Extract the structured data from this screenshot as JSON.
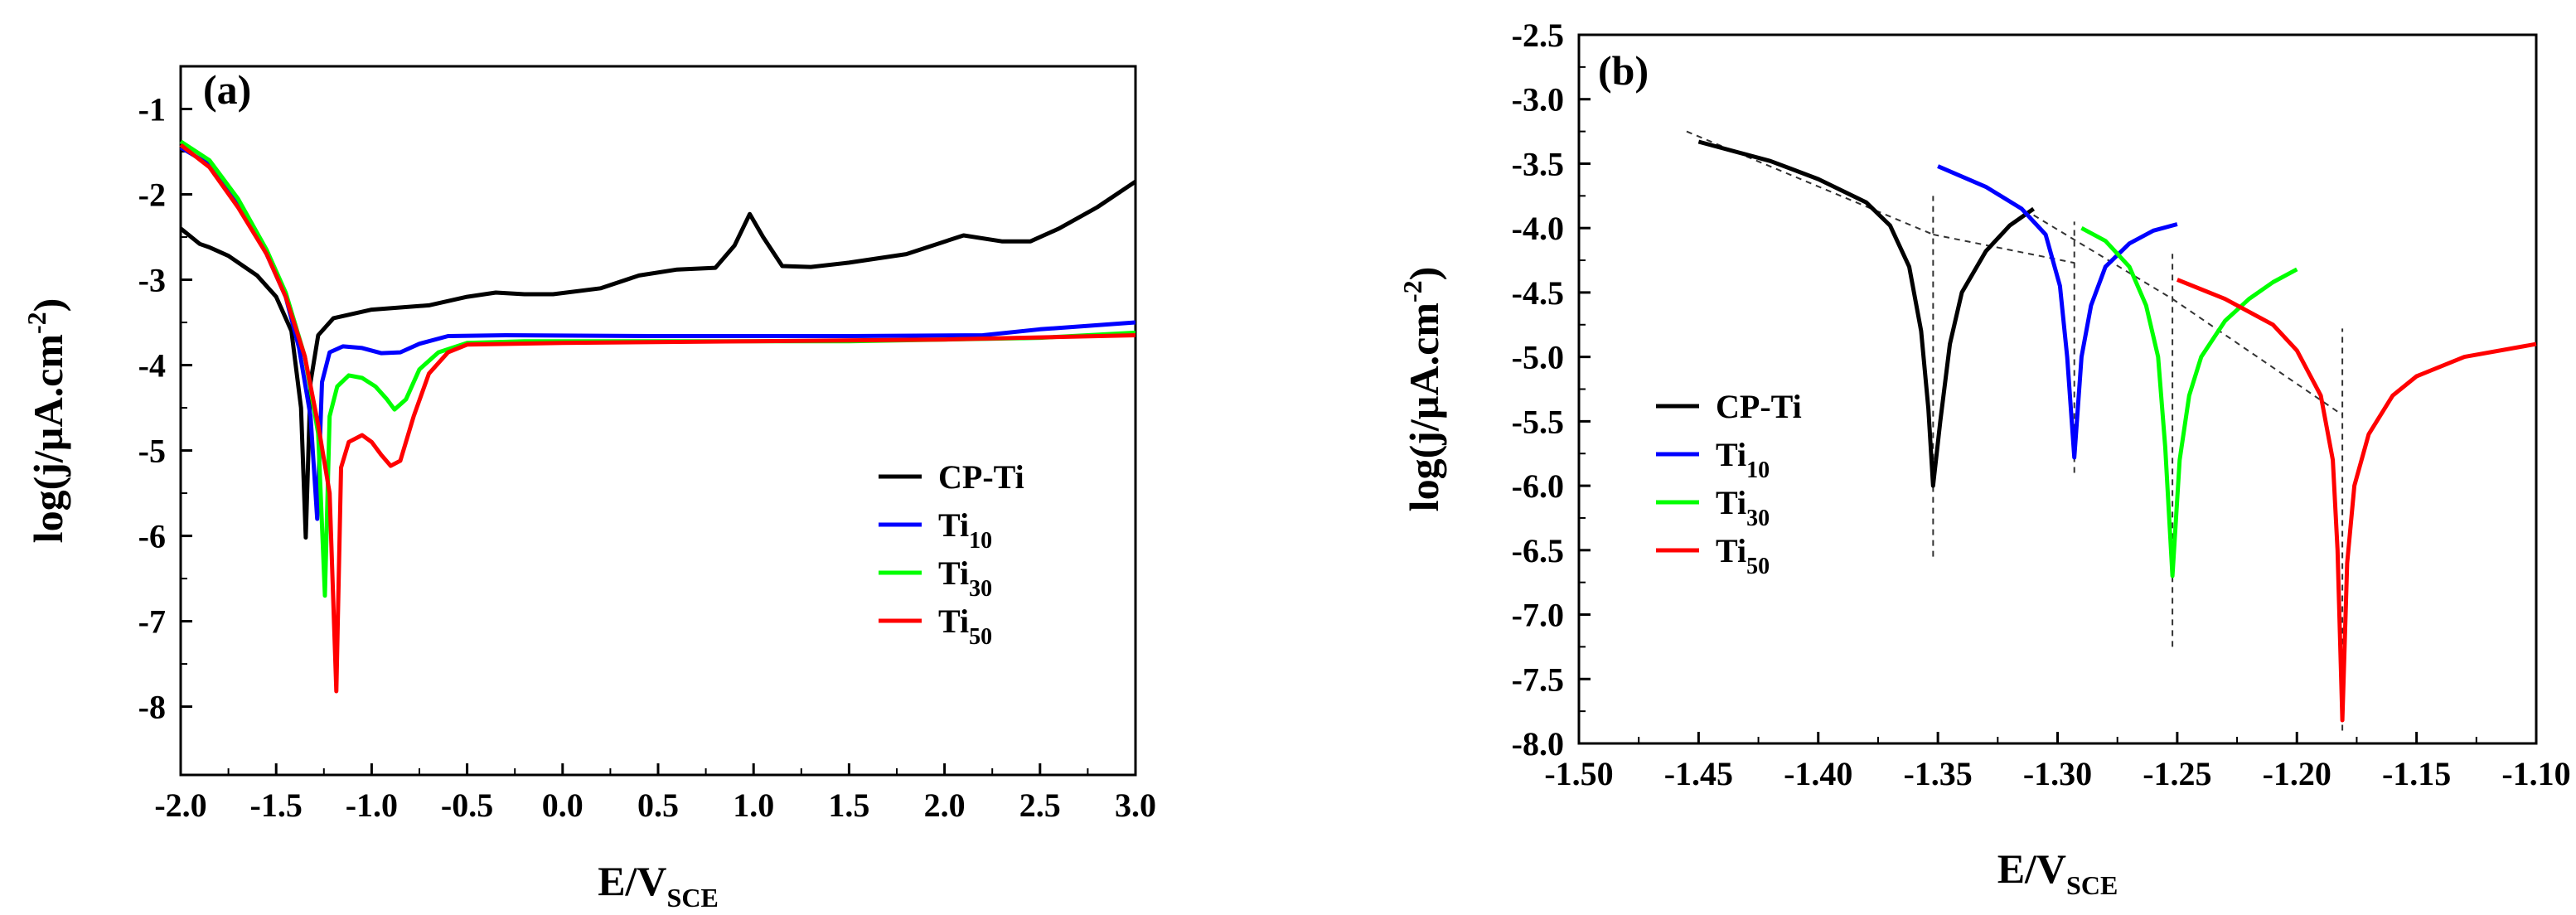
{
  "chart_data": [
    {
      "panel": "(a)",
      "type": "line",
      "xlabel": "E/V",
      "xlabel_sub": "SCE",
      "ylabel": "log(j/µA.cm",
      "ylabel_sup": "-2",
      "ylabel_close": ")",
      "xlim": [
        -2.0,
        3.0
      ],
      "ylim": [
        -8.8,
        -0.5
      ],
      "xticks": [
        "-2.0",
        "-1.5",
        "-1.0",
        "-0.5",
        "0.0",
        "0.5",
        "1.0",
        "1.5",
        "2.0",
        "2.5",
        "3.0"
      ],
      "yticks": [
        "-1",
        "-2",
        "-3",
        "-4",
        "-5",
        "-6",
        "-7",
        "-8"
      ],
      "legend": {
        "position": "right-middle"
      },
      "series": [
        {
          "name": "CP-Ti",
          "base": "CP-Ti",
          "sub": "",
          "color": "#000000",
          "points": [
            [
              -2.0,
              -2.4
            ],
            [
              -1.9,
              -2.58
            ],
            [
              -1.85,
              -2.62
            ],
            [
              -1.75,
              -2.72
            ],
            [
              -1.6,
              -2.95
            ],
            [
              -1.5,
              -3.2
            ],
            [
              -1.42,
              -3.6
            ],
            [
              -1.37,
              -4.5
            ],
            [
              -1.345,
              -6.02
            ],
            [
              -1.32,
              -4.2
            ],
            [
              -1.28,
              -3.65
            ],
            [
              -1.2,
              -3.45
            ],
            [
              -1.0,
              -3.35
            ],
            [
              -0.7,
              -3.3
            ],
            [
              -0.5,
              -3.2
            ],
            [
              -0.35,
              -3.15
            ],
            [
              -0.2,
              -3.17
            ],
            [
              -0.05,
              -3.17
            ],
            [
              0.2,
              -3.1
            ],
            [
              0.4,
              -2.95
            ],
            [
              0.6,
              -2.88
            ],
            [
              0.8,
              -2.86
            ],
            [
              0.9,
              -2.6
            ],
            [
              0.98,
              -2.23
            ],
            [
              1.05,
              -2.5
            ],
            [
              1.15,
              -2.84
            ],
            [
              1.3,
              -2.85
            ],
            [
              1.5,
              -2.8
            ],
            [
              1.8,
              -2.7
            ],
            [
              2.1,
              -2.48
            ],
            [
              2.3,
              -2.55
            ],
            [
              2.45,
              -2.55
            ],
            [
              2.6,
              -2.4
            ],
            [
              2.8,
              -2.15
            ],
            [
              3.0,
              -1.85
            ]
          ]
        },
        {
          "name": "Ti10",
          "base": "Ti",
          "sub": "10",
          "color": "#0000ff",
          "points": [
            [
              -2.0,
              -1.45
            ],
            [
              -1.85,
              -1.65
            ],
            [
              -1.7,
              -2.1
            ],
            [
              -1.55,
              -2.7
            ],
            [
              -1.45,
              -3.2
            ],
            [
              -1.38,
              -3.8
            ],
            [
              -1.32,
              -4.6
            ],
            [
              -1.285,
              -5.8
            ],
            [
              -1.26,
              -4.2
            ],
            [
              -1.22,
              -3.85
            ],
            [
              -1.15,
              -3.78
            ],
            [
              -1.05,
              -3.8
            ],
            [
              -0.95,
              -3.86
            ],
            [
              -0.85,
              -3.85
            ],
            [
              -0.75,
              -3.75
            ],
            [
              -0.6,
              -3.66
            ],
            [
              -0.3,
              -3.65
            ],
            [
              0.5,
              -3.66
            ],
            [
              1.5,
              -3.66
            ],
            [
              2.2,
              -3.65
            ],
            [
              2.5,
              -3.58
            ],
            [
              3.0,
              -3.5
            ]
          ]
        },
        {
          "name": "Ti30",
          "base": "Ti",
          "sub": "30",
          "color": "#00ff00",
          "points": [
            [
              -2.0,
              -1.38
            ],
            [
              -1.85,
              -1.6
            ],
            [
              -1.7,
              -2.05
            ],
            [
              -1.55,
              -2.65
            ],
            [
              -1.45,
              -3.15
            ],
            [
              -1.35,
              -3.9
            ],
            [
              -1.28,
              -4.8
            ],
            [
              -1.245,
              -6.7
            ],
            [
              -1.22,
              -4.6
            ],
            [
              -1.18,
              -4.25
            ],
            [
              -1.12,
              -4.12
            ],
            [
              -1.05,
              -4.15
            ],
            [
              -0.98,
              -4.25
            ],
            [
              -0.92,
              -4.4
            ],
            [
              -0.88,
              -4.52
            ],
            [
              -0.82,
              -4.4
            ],
            [
              -0.75,
              -4.05
            ],
            [
              -0.65,
              -3.85
            ],
            [
              -0.5,
              -3.74
            ],
            [
              -0.2,
              -3.72
            ],
            [
              0.5,
              -3.72
            ],
            [
              1.5,
              -3.72
            ],
            [
              2.5,
              -3.68
            ],
            [
              3.0,
              -3.62
            ]
          ]
        },
        {
          "name": "Ti50",
          "base": "Ti",
          "sub": "50",
          "color": "#ff0000",
          "points": [
            [
              -2.0,
              -1.42
            ],
            [
              -1.85,
              -1.68
            ],
            [
              -1.7,
              -2.15
            ],
            [
              -1.55,
              -2.7
            ],
            [
              -1.45,
              -3.2
            ],
            [
              -1.35,
              -3.9
            ],
            [
              -1.28,
              -4.7
            ],
            [
              -1.22,
              -5.5
            ],
            [
              -1.185,
              -7.82
            ],
            [
              -1.16,
              -5.2
            ],
            [
              -1.12,
              -4.9
            ],
            [
              -1.05,
              -4.82
            ],
            [
              -1.0,
              -4.9
            ],
            [
              -0.95,
              -5.05
            ],
            [
              -0.9,
              -5.18
            ],
            [
              -0.85,
              -5.12
            ],
            [
              -0.78,
              -4.6
            ],
            [
              -0.7,
              -4.1
            ],
            [
              -0.6,
              -3.85
            ],
            [
              -0.5,
              -3.76
            ],
            [
              0.0,
              -3.74
            ],
            [
              1.0,
              -3.72
            ],
            [
              2.0,
              -3.7
            ],
            [
              3.0,
              -3.65
            ]
          ]
        }
      ]
    },
    {
      "panel": "(b)",
      "type": "line",
      "xlabel": "E/V",
      "xlabel_sub": "SCE",
      "ylabel": "log(j/µA.cm",
      "ylabel_sup": "-2",
      "ylabel_close": ")",
      "xlim": [
        -1.5,
        -1.1
      ],
      "ylim": [
        -8.0,
        -2.5
      ],
      "xticks": [
        "-1.50",
        "-1.45",
        "-1.40",
        "-1.35",
        "-1.30",
        "-1.25",
        "-1.20",
        "-1.15",
        "-1.10"
      ],
      "yticks": [
        "-2.5",
        "-3.0",
        "-3.5",
        "-4.0",
        "-4.5",
        "-5.0",
        "-5.5",
        "-6.0",
        "-6.5",
        "-7.0",
        "-7.5",
        "-8.0"
      ],
      "legend": {
        "position": "left-middle"
      },
      "series": [
        {
          "name": "CP-Ti",
          "base": "CP-Ti",
          "sub": "",
          "color": "#000000",
          "points": [
            [
              -1.45,
              -3.33
            ],
            [
              -1.42,
              -3.48
            ],
            [
              -1.4,
              -3.62
            ],
            [
              -1.38,
              -3.8
            ],
            [
              -1.37,
              -3.98
            ],
            [
              -1.362,
              -4.3
            ],
            [
              -1.357,
              -4.8
            ],
            [
              -1.354,
              -5.4
            ],
            [
              -1.352,
              -6.0
            ],
            [
              -1.349,
              -5.5
            ],
            [
              -1.345,
              -4.9
            ],
            [
              -1.34,
              -4.5
            ],
            [
              -1.33,
              -4.18
            ],
            [
              -1.32,
              -3.98
            ],
            [
              -1.31,
              -3.85
            ]
          ]
        },
        {
          "name": "Ti10",
          "base": "Ti",
          "sub": "10",
          "color": "#0000ff",
          "points": [
            [
              -1.35,
              -3.52
            ],
            [
              -1.33,
              -3.68
            ],
            [
              -1.315,
              -3.85
            ],
            [
              -1.305,
              -4.05
            ],
            [
              -1.299,
              -4.45
            ],
            [
              -1.296,
              -5.0
            ],
            [
              -1.293,
              -5.78
            ],
            [
              -1.29,
              -5.0
            ],
            [
              -1.286,
              -4.6
            ],
            [
              -1.28,
              -4.3
            ],
            [
              -1.27,
              -4.12
            ],
            [
              -1.26,
              -4.02
            ],
            [
              -1.25,
              -3.97
            ]
          ]
        },
        {
          "name": "Ti30",
          "base": "Ti",
          "sub": "30",
          "color": "#00ff00",
          "points": [
            [
              -1.29,
              -4.0
            ],
            [
              -1.28,
              -4.1
            ],
            [
              -1.27,
              -4.3
            ],
            [
              -1.263,
              -4.6
            ],
            [
              -1.258,
              -5.0
            ],
            [
              -1.255,
              -5.7
            ],
            [
              -1.252,
              -6.7
            ],
            [
              -1.249,
              -5.8
            ],
            [
              -1.245,
              -5.3
            ],
            [
              -1.24,
              -5.0
            ],
            [
              -1.23,
              -4.72
            ],
            [
              -1.22,
              -4.55
            ],
            [
              -1.21,
              -4.42
            ],
            [
              -1.2,
              -4.32
            ]
          ]
        },
        {
          "name": "Ti50",
          "base": "Ti",
          "sub": "50",
          "color": "#ff0000",
          "points": [
            [
              -1.25,
              -4.4
            ],
            [
              -1.23,
              -4.55
            ],
            [
              -1.21,
              -4.75
            ],
            [
              -1.2,
              -4.95
            ],
            [
              -1.19,
              -5.3
            ],
            [
              -1.185,
              -5.8
            ],
            [
              -1.183,
              -6.5
            ],
            [
              -1.181,
              -7.82
            ],
            [
              -1.179,
              -6.6
            ],
            [
              -1.176,
              -6.0
            ],
            [
              -1.17,
              -5.6
            ],
            [
              -1.16,
              -5.3
            ],
            [
              -1.15,
              -5.15
            ],
            [
              -1.13,
              -5.0
            ],
            [
              -1.1,
              -4.9
            ]
          ]
        }
      ],
      "tangent_lines": [
        [
          [
            -1.455,
            -3.25
          ],
          [
            -1.352,
            -4.05
          ]
        ],
        [
          [
            -1.352,
            -4.05
          ],
          [
            -1.293,
            -4.27
          ]
        ],
        [
          [
            -1.31,
            -3.9
          ],
          [
            -1.252,
            -4.55
          ]
        ],
        [
          [
            -1.252,
            -4.55
          ],
          [
            -1.181,
            -5.45
          ]
        ]
      ],
      "vertical_markers": [
        {
          "x": -1.352,
          "y_range": [
            -6.55,
            -3.75
          ]
        },
        {
          "x": -1.293,
          "y_range": [
            -5.9,
            -3.95
          ]
        },
        {
          "x": -1.252,
          "y_range": [
            -7.25,
            -4.2
          ]
        },
        {
          "x": -1.181,
          "y_range": [
            -7.9,
            -4.78
          ]
        }
      ]
    }
  ]
}
